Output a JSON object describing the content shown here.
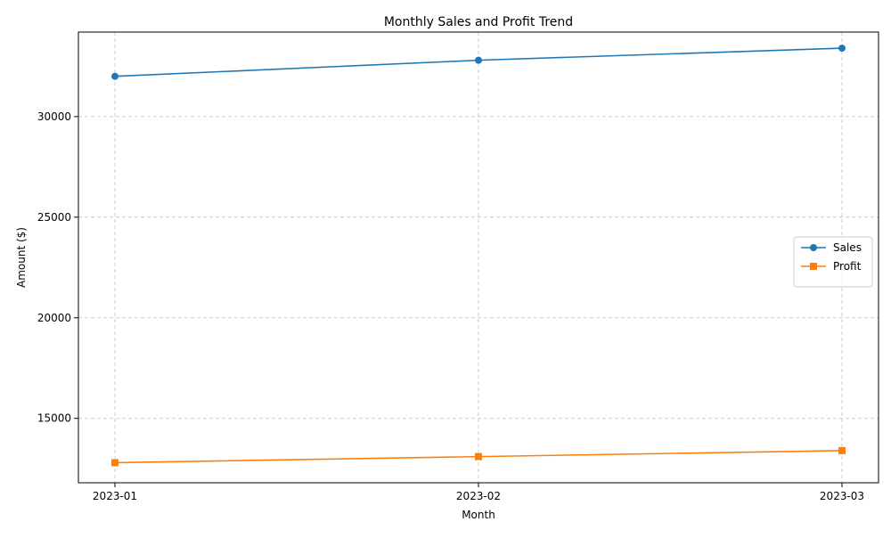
{
  "chart_data": {
    "type": "line",
    "title": "Monthly Sales and Profit Trend",
    "xlabel": "Month",
    "ylabel": "Amount ($)",
    "categories": [
      "2023-01",
      "2023-02",
      "2023-03"
    ],
    "ylim": [
      11800,
      34200
    ],
    "yticks": [
      15000,
      20000,
      25000,
      30000
    ],
    "grid": true,
    "legend_position": "center-right",
    "series": [
      {
        "name": "Sales",
        "values": [
          32000,
          32800,
          33400
        ],
        "color": "#1f77b4",
        "marker": "circle"
      },
      {
        "name": "Profit",
        "values": [
          12800,
          13100,
          13400
        ],
        "color": "#ff7f0e",
        "marker": "square"
      }
    ]
  }
}
